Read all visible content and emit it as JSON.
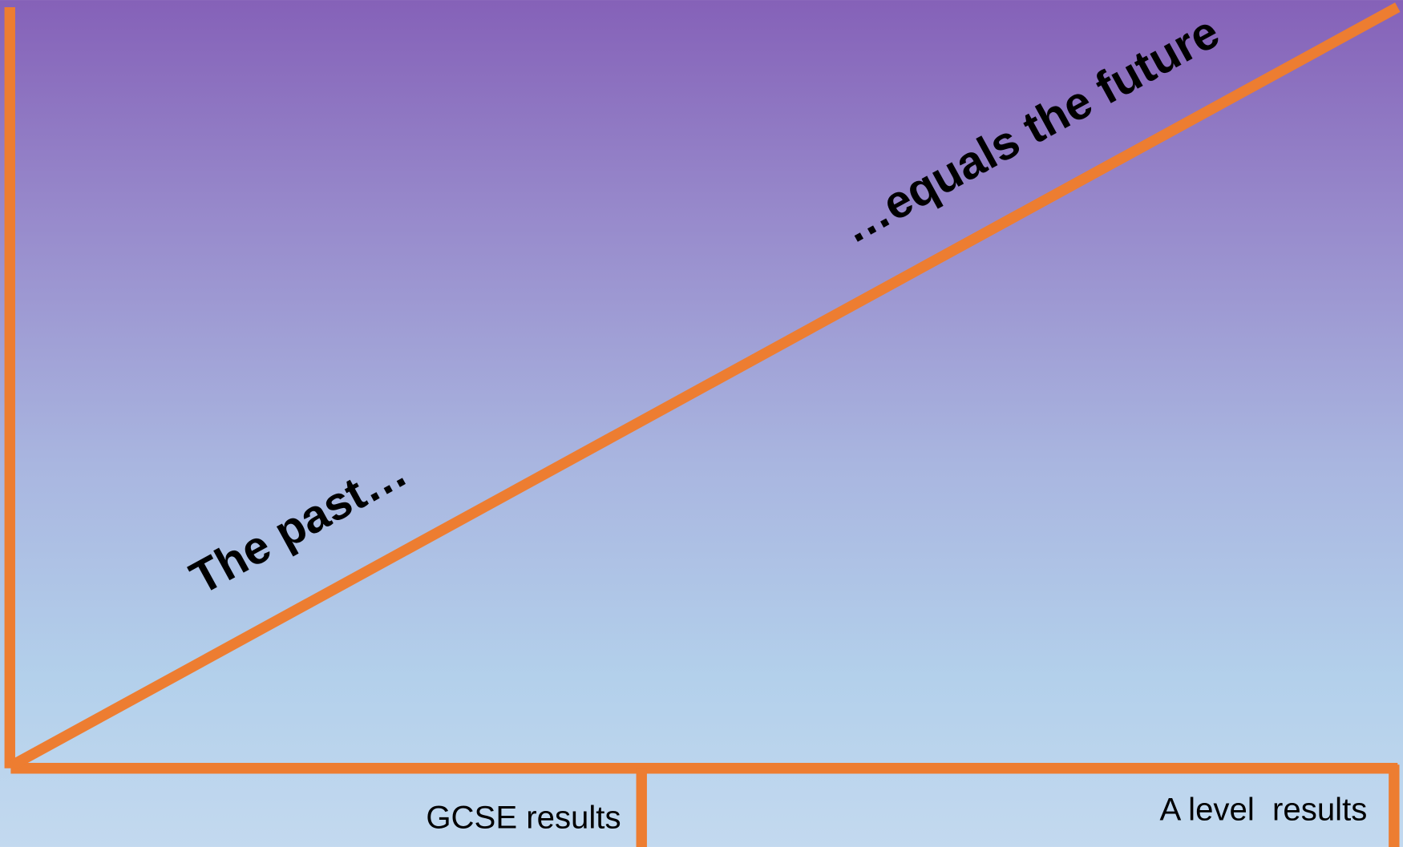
{
  "diagram": {
    "labels": {
      "past": "The past…",
      "future": "…equals the future"
    },
    "axis_labels": {
      "left": "GCSE results",
      "right": "A level  results"
    }
  }
}
